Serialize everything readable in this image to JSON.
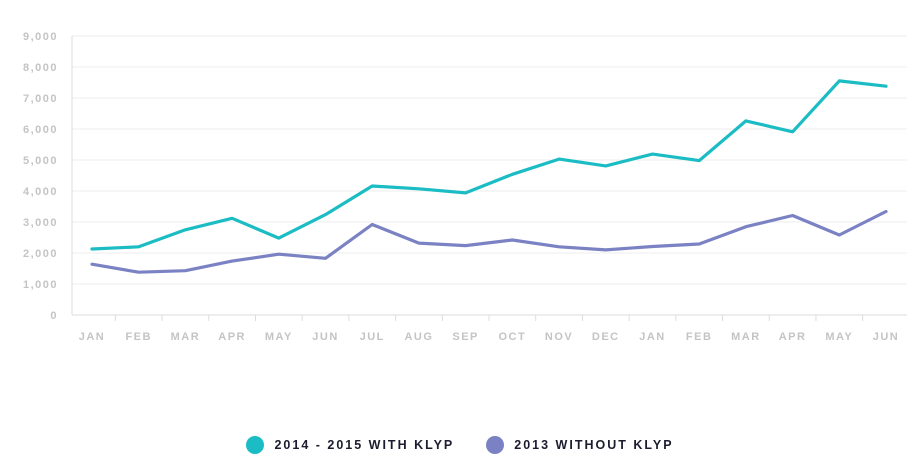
{
  "chart_data": {
    "type": "line",
    "categories": [
      "JAN",
      "FEB",
      "MAR",
      "APR",
      "MAY",
      "JUN",
      "JUL",
      "AUG",
      "SEP",
      "OCT",
      "NOV",
      "DEC",
      "JAN",
      "FEB",
      "MAR",
      "APR",
      "MAY",
      "JUN"
    ],
    "y_ticks": [
      "0",
      "1,000",
      "2,000",
      "3,000",
      "4,000",
      "5,000",
      "6,000",
      "7,000",
      "8,000",
      "9,000"
    ],
    "ylim": [
      0,
      9000
    ],
    "grid": true,
    "legend_position": "bottom-center",
    "series": [
      {
        "name": "2014 - 2015 WITH KLYP",
        "color": "#1bbcc4",
        "values": [
          2130,
          2200,
          2750,
          3120,
          2480,
          3240,
          4160,
          4070,
          3940,
          4540,
          5030,
          4810,
          5190,
          4980,
          6260,
          5910,
          7550,
          7380
        ]
      },
      {
        "name": "2013 WITHOUT KLYP",
        "color": "#7b82c4",
        "values": [
          1640,
          1380,
          1430,
          1740,
          1960,
          1830,
          2920,
          2320,
          2240,
          2420,
          2200,
          2100,
          2210,
          2290,
          2850,
          3210,
          2580,
          3340
        ]
      }
    ]
  }
}
